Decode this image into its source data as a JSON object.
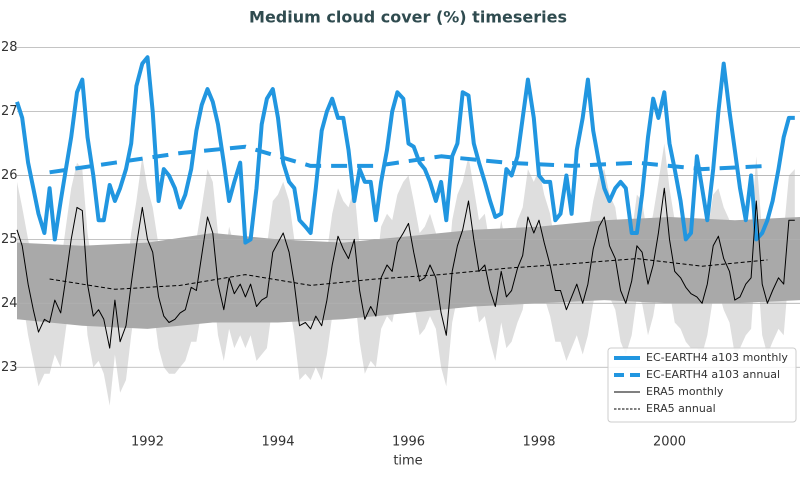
{
  "chart_data": {
    "type": "line",
    "title": "Medium cloud cover (%) timeseries",
    "xlabel": "time",
    "xlim": [
      1990,
      2002
    ],
    "ylim": [
      22.05,
      28.15
    ],
    "xticks": [
      1992,
      1994,
      1996,
      1998,
      2000
    ],
    "yticks": [
      23,
      24,
      25,
      26,
      27,
      28
    ],
    "grid": true,
    "legend": "lower right",
    "x": [
      1990.0,
      1990.08,
      1990.17,
      1990.25,
      1990.33,
      1990.42,
      1990.5,
      1990.58,
      1990.67,
      1990.75,
      1990.83,
      1990.92,
      1991.0,
      1991.08,
      1991.17,
      1991.25,
      1991.33,
      1991.42,
      1991.5,
      1991.58,
      1991.67,
      1991.75,
      1991.83,
      1991.92,
      1992.0,
      1992.08,
      1992.17,
      1992.25,
      1992.33,
      1992.42,
      1992.5,
      1992.58,
      1992.67,
      1992.75,
      1992.83,
      1992.92,
      1993.0,
      1993.08,
      1993.17,
      1993.25,
      1993.33,
      1993.42,
      1993.5,
      1993.58,
      1993.67,
      1993.75,
      1993.83,
      1993.92,
      1994.0,
      1994.08,
      1994.17,
      1994.25,
      1994.33,
      1994.42,
      1994.5,
      1994.58,
      1994.67,
      1994.75,
      1994.83,
      1994.92,
      1995.0,
      1995.08,
      1995.17,
      1995.25,
      1995.33,
      1995.42,
      1995.5,
      1995.58,
      1995.67,
      1995.75,
      1995.83,
      1995.92,
      1996.0,
      1996.08,
      1996.17,
      1996.25,
      1996.33,
      1996.42,
      1996.5,
      1996.58,
      1996.67,
      1996.75,
      1996.83,
      1996.92,
      1997.0,
      1997.08,
      1997.17,
      1997.25,
      1997.33,
      1997.42,
      1997.5,
      1997.58,
      1997.67,
      1997.75,
      1997.83,
      1997.92,
      1998.0,
      1998.08,
      1998.17,
      1998.25,
      1998.33,
      1998.42,
      1998.5,
      1998.58,
      1998.67,
      1998.75,
      1998.83,
      1998.92,
      1999.0,
      1999.08,
      1999.17,
      1999.25,
      1999.33,
      1999.42,
      1999.5,
      1999.58,
      1999.67,
      1999.75,
      1999.83,
      1999.92,
      2000.0,
      2000.08,
      2000.17,
      2000.25,
      2000.33,
      2000.42,
      2000.5,
      2000.58,
      2000.67,
      2000.75,
      2000.83,
      2000.92,
      2001.0,
      2001.08,
      2001.17,
      2001.25,
      2001.33,
      2001.42,
      2001.5,
      2001.58,
      2001.67,
      2001.75,
      2001.83,
      2001.92
    ],
    "bands": [
      {
        "color": "#dedede",
        "upper": [
          25.9,
          25.5,
          25.0,
          24.6,
          24.3,
          24.5,
          24.4,
          24.8,
          24.6,
          25.2,
          25.8,
          26.2,
          26.1,
          25.1,
          24.5,
          24.6,
          24.5,
          24.1,
          24.8,
          24.2,
          24.4,
          25.1,
          25.6,
          26.3,
          25.8,
          25.5,
          24.9,
          24.5,
          24.4,
          24.5,
          24.6,
          24.6,
          25.0,
          25.0,
          25.5,
          26.1,
          25.9,
          25.1,
          24.6,
          25.2,
          24.9,
          25.0,
          24.9,
          25.0,
          24.7,
          24.8,
          24.9,
          25.6,
          25.7,
          25.9,
          25.6,
          25.0,
          24.4,
          24.4,
          24.3,
          24.5,
          24.4,
          24.8,
          25.4,
          25.8,
          25.6,
          25.5,
          25.8,
          24.9,
          24.5,
          24.7,
          24.5,
          25.2,
          25.4,
          25.3,
          25.7,
          25.9,
          26.0,
          25.6,
          25.1,
          25.2,
          25.4,
          25.1,
          24.6,
          24.2,
          25.3,
          25.7,
          25.9,
          26.3,
          25.8,
          25.3,
          25.4,
          24.9,
          24.7,
          25.3,
          24.9,
          24.9,
          25.3,
          25.5,
          26.1,
          25.9,
          26.1,
          25.7,
          25.4,
          24.9,
          24.9,
          24.6,
          24.9,
          25.1,
          24.8,
          25.1,
          25.6,
          26.0,
          26.1,
          25.7,
          25.5,
          24.9,
          24.7,
          25.1,
          25.7,
          25.6,
          25.0,
          25.4,
          25.9,
          26.5,
          25.8,
          25.3,
          25.2,
          25.0,
          24.9,
          24.8,
          24.7,
          25.1,
          25.7,
          25.8,
          25.5,
          25.3,
          24.8,
          24.9,
          25.1,
          25.2,
          26.3,
          25.1,
          24.7,
          25.0,
          25.2,
          25.1,
          26.0,
          26.1
        ],
        "lower": [
          24.3,
          24.1,
          23.5,
          23.1,
          22.7,
          22.9,
          22.9,
          23.2,
          23.0,
          23.6,
          24.2,
          24.7,
          24.6,
          23.5,
          23.0,
          23.1,
          22.9,
          22.4,
          23.2,
          22.6,
          22.8,
          23.5,
          24.1,
          24.7,
          24.2,
          24.0,
          23.3,
          23.0,
          22.9,
          22.9,
          23.0,
          23.1,
          23.4,
          23.4,
          23.9,
          24.5,
          24.3,
          23.5,
          23.1,
          23.6,
          23.3,
          23.5,
          23.3,
          23.5,
          23.1,
          23.2,
          23.3,
          24.0,
          24.1,
          24.3,
          24.0,
          23.5,
          22.8,
          22.9,
          22.8,
          23.0,
          22.8,
          23.2,
          23.8,
          24.2,
          24.0,
          23.9,
          24.2,
          23.4,
          22.9,
          23.1,
          23.0,
          23.6,
          23.8,
          23.7,
          24.1,
          24.3,
          24.4,
          24.0,
          23.5,
          23.6,
          23.8,
          23.6,
          23.0,
          22.7,
          23.7,
          24.1,
          24.3,
          24.8,
          24.2,
          23.7,
          23.8,
          23.4,
          23.1,
          23.7,
          23.3,
          23.4,
          23.7,
          23.9,
          24.5,
          24.3,
          24.5,
          24.1,
          23.8,
          23.4,
          23.4,
          23.1,
          23.3,
          23.5,
          23.2,
          23.5,
          24.0,
          24.4,
          24.5,
          24.1,
          23.9,
          23.4,
          23.2,
          23.5,
          24.1,
          24.0,
          23.5,
          23.8,
          24.3,
          25.0,
          24.2,
          23.7,
          23.6,
          23.4,
          23.3,
          23.3,
          23.2,
          23.5,
          24.1,
          24.2,
          23.9,
          23.7,
          23.2,
          23.3,
          23.5,
          23.6,
          24.8,
          23.5,
          23.2,
          23.4,
          23.6,
          23.5,
          24.5,
          24.5
        ]
      },
      {
        "color": "#a9a9a9",
        "x": [
          1990,
          1991,
          1992,
          1993,
          1994,
          1995,
          1996,
          1997,
          1998,
          1999,
          2000,
          2001,
          2002
        ],
        "upper": [
          24.95,
          24.9,
          24.95,
          25.1,
          25.0,
          24.95,
          25.05,
          25.15,
          25.2,
          25.3,
          25.35,
          25.3,
          25.35
        ],
        "lower": [
          23.75,
          23.65,
          23.6,
          23.7,
          23.7,
          23.75,
          23.85,
          23.95,
          24.0,
          24.05,
          24.0,
          24.0,
          24.05
        ]
      }
    ],
    "series": [
      {
        "name": "EC-EARTH4 a103 monthly",
        "color": "#2196e0",
        "linewidth": 4,
        "linestyle": "solid",
        "values": [
          27.15,
          26.9,
          26.2,
          25.8,
          25.4,
          25.1,
          25.8,
          25.0,
          25.6,
          26.1,
          26.6,
          27.3,
          27.5,
          26.6,
          26.0,
          25.3,
          25.3,
          25.85,
          25.6,
          25.8,
          26.1,
          26.5,
          27.4,
          27.75,
          27.85,
          27.0,
          25.6,
          26.1,
          26.0,
          25.8,
          25.5,
          25.7,
          26.1,
          26.7,
          27.1,
          27.35,
          27.15,
          26.8,
          26.2,
          25.6,
          25.9,
          26.2,
          24.95,
          25.0,
          25.8,
          26.8,
          27.2,
          27.35,
          26.9,
          26.2,
          25.9,
          25.8,
          25.3,
          25.2,
          25.1,
          25.8,
          26.7,
          27.0,
          27.2,
          26.9,
          26.9,
          26.4,
          25.6,
          26.1,
          25.9,
          25.9,
          25.3,
          25.9,
          26.4,
          27.0,
          27.3,
          27.2,
          26.5,
          26.45,
          26.2,
          26.1,
          25.9,
          25.6,
          25.9,
          25.3,
          26.3,
          26.5,
          27.3,
          27.25,
          26.5,
          26.2,
          25.9,
          25.6,
          25.35,
          25.4,
          26.1,
          26.0,
          26.3,
          26.9,
          27.5,
          26.9,
          26.0,
          25.9,
          25.9,
          25.3,
          25.4,
          26.0,
          25.4,
          26.4,
          26.9,
          27.5,
          26.7,
          26.2,
          25.8,
          25.6,
          25.8,
          25.9,
          25.8,
          25.1,
          25.1,
          25.7,
          26.6,
          27.2,
          26.9,
          27.3,
          26.5,
          26.1,
          25.6,
          25.0,
          25.1,
          26.3,
          25.8,
          25.3,
          26.1,
          27.0,
          27.75,
          27.0,
          26.4,
          25.8,
          25.3,
          26.0,
          25.0,
          25.1,
          25.3,
          25.6,
          26.1,
          26.6,
          26.9,
          26.9
        ]
      },
      {
        "name": "EC-EARTH4 a103 annual",
        "color": "#2196e0",
        "linewidth": 4,
        "linestyle": "dashed",
        "x": [
          1990.5,
          1991.5,
          1992.5,
          1993.5,
          1994.5,
          1995.5,
          1996.5,
          1997.5,
          1998.5,
          1999.5,
          2000.5,
          2001.5
        ],
        "values": [
          26.05,
          26.2,
          26.35,
          26.45,
          26.15,
          26.15,
          26.3,
          26.2,
          26.15,
          26.2,
          26.1,
          26.15
        ]
      },
      {
        "name": "ERA5 monthly",
        "color": "#000000",
        "linewidth": 1,
        "linestyle": "solid",
        "values": [
          25.15,
          24.9,
          24.3,
          23.9,
          23.55,
          23.75,
          23.7,
          24.05,
          23.85,
          24.4,
          25.0,
          25.5,
          25.45,
          24.3,
          23.8,
          23.9,
          23.75,
          23.3,
          24.05,
          23.4,
          23.65,
          24.3,
          24.9,
          25.5,
          25.0,
          24.8,
          24.1,
          23.8,
          23.7,
          23.75,
          23.85,
          23.9,
          24.25,
          24.2,
          24.75,
          25.35,
          25.1,
          24.3,
          23.9,
          24.4,
          24.15,
          24.3,
          24.1,
          24.3,
          23.95,
          24.05,
          24.1,
          24.8,
          24.95,
          25.1,
          24.8,
          24.3,
          23.65,
          23.7,
          23.6,
          23.8,
          23.65,
          24.05,
          24.6,
          25.05,
          24.85,
          24.7,
          25.0,
          24.2,
          23.75,
          23.95,
          23.8,
          24.4,
          24.6,
          24.5,
          24.95,
          25.1,
          25.25,
          24.8,
          24.35,
          24.4,
          24.6,
          24.4,
          23.85,
          23.5,
          24.5,
          24.9,
          25.15,
          25.6,
          25.0,
          24.5,
          24.6,
          24.2,
          23.95,
          24.5,
          24.1,
          24.2,
          24.55,
          24.75,
          25.35,
          25.1,
          25.3,
          24.95,
          24.6,
          24.2,
          24.2,
          23.9,
          24.1,
          24.3,
          24.0,
          24.3,
          24.85,
          25.2,
          25.35,
          24.9,
          24.7,
          24.2,
          24.0,
          24.35,
          24.9,
          24.8,
          24.3,
          24.6,
          25.1,
          25.8,
          25.0,
          24.5,
          24.4,
          24.25,
          24.15,
          24.1,
          24.0,
          24.3,
          24.9,
          25.05,
          24.7,
          24.5,
          24.05,
          24.1,
          24.3,
          24.4,
          25.6,
          24.3,
          24.0,
          24.2,
          24.4,
          24.3,
          25.3,
          25.3
        ]
      },
      {
        "name": "ERA5 annual",
        "color": "#000000",
        "linewidth": 1,
        "linestyle": "dashed",
        "x": [
          1990.5,
          1991.5,
          1992.5,
          1993.5,
          1994.5,
          1995.5,
          1996.5,
          1997.5,
          1998.5,
          1999.5,
          2000.5,
          2001.5
        ],
        "values": [
          24.38,
          24.22,
          24.28,
          24.45,
          24.28,
          24.38,
          24.45,
          24.55,
          24.62,
          24.7,
          24.58,
          24.68
        ]
      }
    ]
  }
}
